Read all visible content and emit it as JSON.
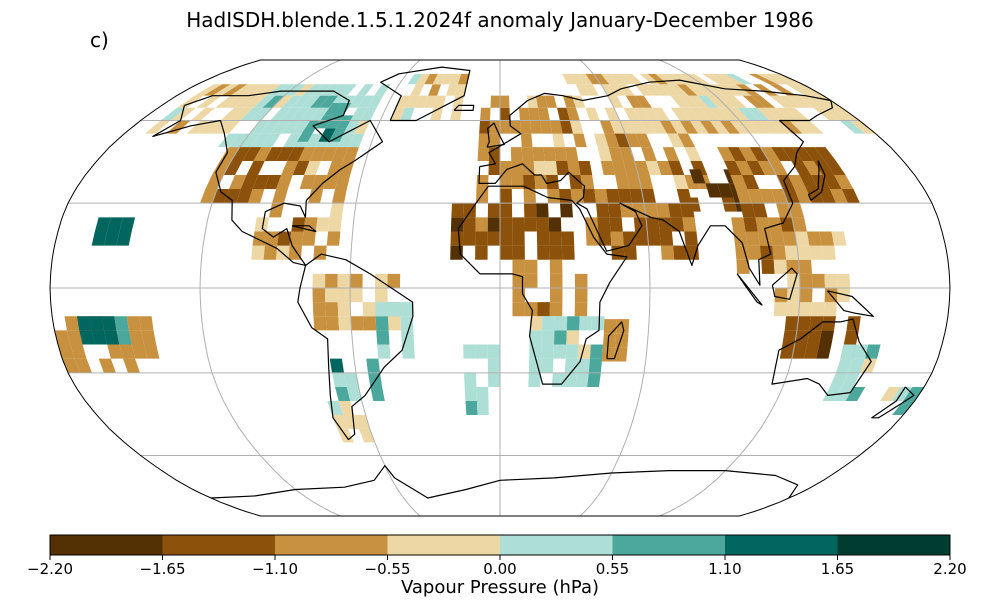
{
  "title": "HadISDH.blende.1.5.1.2024f anomaly January-December 1986",
  "panel_label": "c)",
  "colorbar": {
    "label": "Vapour Pressure (hPa)",
    "ticks": [
      "−2.20",
      "−1.65",
      "−1.10",
      "−0.55",
      "0.00",
      "0.55",
      "1.10",
      "1.65",
      "2.20"
    ],
    "bins": [
      {
        "range": [
          -2.2,
          -1.65
        ],
        "color": "#543005"
      },
      {
        "range": [
          -1.65,
          -1.1
        ],
        "color": "#8c510a"
      },
      {
        "range": [
          -1.1,
          -0.55
        ],
        "color": "#c8913f"
      },
      {
        "range": [
          -0.55,
          0.0
        ],
        "color": "#ecd7a5"
      },
      {
        "range": [
          0.0,
          0.55
        ],
        "color": "#aedfd7"
      },
      {
        "range": [
          0.55,
          1.1
        ],
        "color": "#4ca89c"
      },
      {
        "range": [
          1.1,
          1.65
        ],
        "color": "#01665e"
      },
      {
        "range": [
          1.65,
          2.2
        ],
        "color": "#003c30"
      }
    ]
  },
  "map": {
    "projection": "Robinson",
    "gridlines": true,
    "coastlines": true,
    "anomaly_cells": [
      {
        "region": "Alaska / NW Canada",
        "value": -0.3
      },
      {
        "region": "Canada interior",
        "value": 0.3
      },
      {
        "region": "Hudson Bay",
        "value": 0.9
      },
      {
        "region": "Eastern USA",
        "value": -0.8
      },
      {
        "region": "Western USA",
        "value": -1.3
      },
      {
        "region": "Caribbean / Gulf",
        "value": -0.8
      },
      {
        "region": "Hawaii",
        "value": 1.3
      },
      {
        "region": "Greenland",
        "value": -0.3
      },
      {
        "region": "Europe",
        "value": -0.8
      },
      {
        "region": "Mediterranean",
        "value": -1.1
      },
      {
        "region": "Sahara / West Africa",
        "value": -1.4
      },
      {
        "region": "Central Africa",
        "value": -0.8
      },
      {
        "region": "Southern Africa",
        "value": 0.3
      },
      {
        "region": "Madagascar",
        "value": -0.8
      },
      {
        "region": "Russia / Siberia",
        "value": -0.3
      },
      {
        "region": "Central Asia",
        "value": -0.8
      },
      {
        "region": "Arabia / India",
        "value": -1.2
      },
      {
        "region": "Tibet",
        "value": -1.8
      },
      {
        "region": "China / East Asia",
        "value": -1.0
      },
      {
        "region": "Japan / NW Pacific",
        "value": -1.3
      },
      {
        "region": "Southeast Asia",
        "value": -0.9
      },
      {
        "region": "Philippines / Indonesia",
        "value": -0.6
      },
      {
        "region": "Northern Australia",
        "value": -1.6
      },
      {
        "region": "Eastern Australia",
        "value": 0.3
      },
      {
        "region": "New Zealand",
        "value": 0.3
      },
      {
        "region": "Pacific islands south",
        "value": -0.8
      },
      {
        "region": "Amazon",
        "value": -0.6
      },
      {
        "region": "Brazil east",
        "value": 0.3
      },
      {
        "region": "Southern South America",
        "value": 0.8
      },
      {
        "region": "Argentina south",
        "value": -0.3
      },
      {
        "region": "South Atlantic islands",
        "value": 0.3
      },
      {
        "region": "Central Pacific south",
        "value": 1.2
      }
    ]
  }
}
